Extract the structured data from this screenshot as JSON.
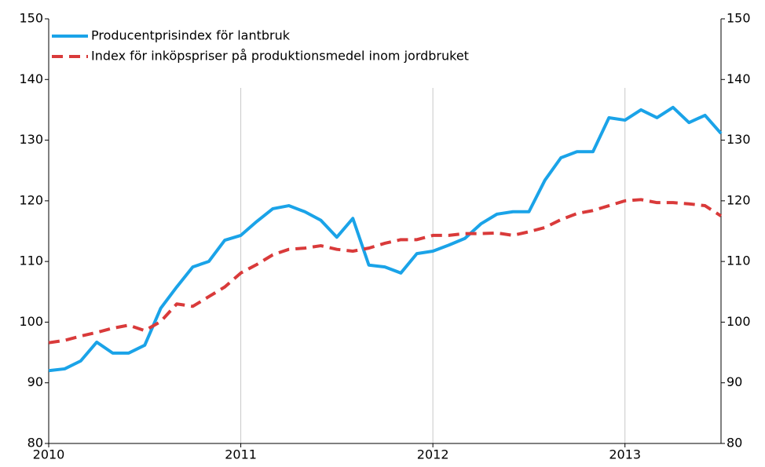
{
  "chart_data": {
    "type": "line",
    "categories": [
      "2010",
      null,
      null,
      null,
      null,
      null,
      null,
      null,
      null,
      null,
      null,
      null,
      "2011",
      null,
      null,
      null,
      null,
      null,
      null,
      null,
      null,
      null,
      null,
      null,
      "2012",
      null,
      null,
      null,
      null,
      null,
      null,
      null,
      null,
      null,
      null,
      null,
      "2013",
      null,
      null,
      null,
      null,
      null,
      null
    ],
    "series": [
      {
        "name": "Producentprisindex för lantbruk",
        "color": "#1aa3e8",
        "dash": "solid",
        "values": [
          92.0,
          92.3,
          93.6,
          96.7,
          94.9,
          94.9,
          96.2,
          102.3,
          105.8,
          109.1,
          110.0,
          113.5,
          114.3,
          116.6,
          118.7,
          119.2,
          118.2,
          116.8,
          114.0,
          117.1,
          109.4,
          109.1,
          108.1,
          111.3,
          111.7,
          112.7,
          113.8,
          116.2,
          117.8,
          118.2,
          118.2,
          123.4,
          127.1,
          128.1,
          128.1,
          133.7,
          133.3,
          135.0,
          133.7,
          135.4,
          132.9,
          134.1,
          131.1
        ]
      },
      {
        "name": "Index för inköpspriser på produktionsmedel inom jordbruket",
        "color": "#d93a3a",
        "dash": "dashed",
        "values": [
          96.6,
          97.0,
          97.7,
          98.3,
          99.0,
          99.5,
          98.6,
          100.1,
          103.0,
          102.6,
          104.2,
          105.8,
          108.1,
          109.5,
          111.1,
          112.0,
          112.2,
          112.6,
          112.0,
          111.7,
          112.2,
          113.0,
          113.6,
          113.6,
          114.3,
          114.3,
          114.6,
          114.6,
          114.7,
          114.3,
          114.9,
          115.6,
          116.9,
          117.9,
          118.4,
          119.2,
          120.0,
          120.2,
          119.7,
          119.7,
          119.5,
          119.2,
          117.5
        ]
      }
    ],
    "ylim": [
      80,
      150
    ],
    "yticks": [
      80,
      90,
      100,
      110,
      120,
      130,
      140,
      150
    ],
    "y2lim": [
      80,
      150
    ],
    "y2ticks": [
      80,
      90,
      100,
      110,
      120,
      130,
      140,
      150
    ],
    "grid": "x",
    "legend": "upper left"
  }
}
